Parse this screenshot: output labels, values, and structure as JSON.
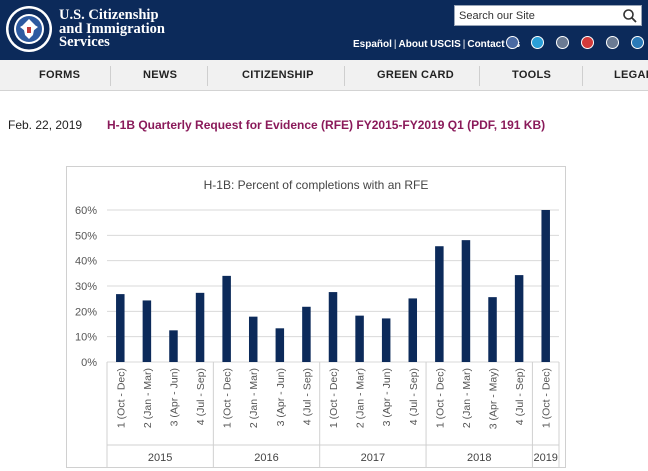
{
  "header": {
    "agency_line1": "U.S. Citizenship",
    "agency_line2": "and Immigration",
    "agency_line3": "Services",
    "seal_icon": "dhs-seal-icon",
    "search": {
      "placeholder": "Search our Site",
      "icon": "search-icon"
    },
    "utility_links": [
      "Español",
      "About USCIS",
      "Contact Us"
    ],
    "social_icons": [
      {
        "name": "facebook-icon",
        "color": "#4a6aa3"
      },
      {
        "name": "twitter-icon",
        "color": "#2a9fd8"
      },
      {
        "name": "instagram-icon",
        "color": "#6a7a93"
      },
      {
        "name": "youtube-icon",
        "color": "#d23a3a"
      },
      {
        "name": "email-icon",
        "color": "#6a7a93"
      },
      {
        "name": "linkedin-icon",
        "color": "#2a7ab8"
      }
    ],
    "colors": {
      "header_bg": "#0c2a5a",
      "link_color": "#8a1a5a"
    }
  },
  "nav": {
    "items": [
      "FORMS",
      "NEWS",
      "CITIZENSHIP",
      "GREEN CARD",
      "TOOLS",
      "LEGAL"
    ]
  },
  "content": {
    "date": "Feb. 22, 2019",
    "link_text": "H-1B Quarterly Request for Evidence (RFE) FY2015-FY2019 Q1 (PDF, 191 KB)"
  },
  "chart_data": {
    "type": "bar",
    "title": "H-1B: Percent of completions with an RFE",
    "categories": [
      "1 (Oct - Dec)",
      "2 (Jan - Mar)",
      "3 (Apr - Jun)",
      "4 (Jul - Sep)",
      "1 (Oct - Dec)",
      "2 (Jan - Mar)",
      "3 (Apr - Jun)",
      "4 (Jul - Sep)",
      "1 (Oct - Dec)",
      "2 (Jan - Mar)",
      "3 (Apr - Jun)",
      "4 (Jul - Sep)",
      "1 (Oct - Dec)",
      "2 (Jan - Mar)",
      "3 (Apr - May)",
      "4 (Jul - Sep)",
      "1 (Oct - Dec)"
    ],
    "values": [
      26.8,
      24.3,
      12.5,
      27.3,
      34.0,
      17.9,
      13.3,
      21.8,
      27.6,
      18.3,
      17.2,
      25.1,
      45.7,
      48.1,
      25.6,
      34.3,
      60.0
    ],
    "groups": [
      {
        "label": "2015",
        "count": 4
      },
      {
        "label": "2016",
        "count": 4
      },
      {
        "label": "2017",
        "count": 4
      },
      {
        "label": "2018",
        "count": 4
      },
      {
        "label": "2019",
        "count": 1
      }
    ],
    "y_ticks": [
      "0%",
      "10%",
      "20%",
      "30%",
      "40%",
      "50%",
      "60%"
    ],
    "ylim": [
      0,
      60
    ],
    "grid": true,
    "bar_color": "#0c2a5a"
  }
}
